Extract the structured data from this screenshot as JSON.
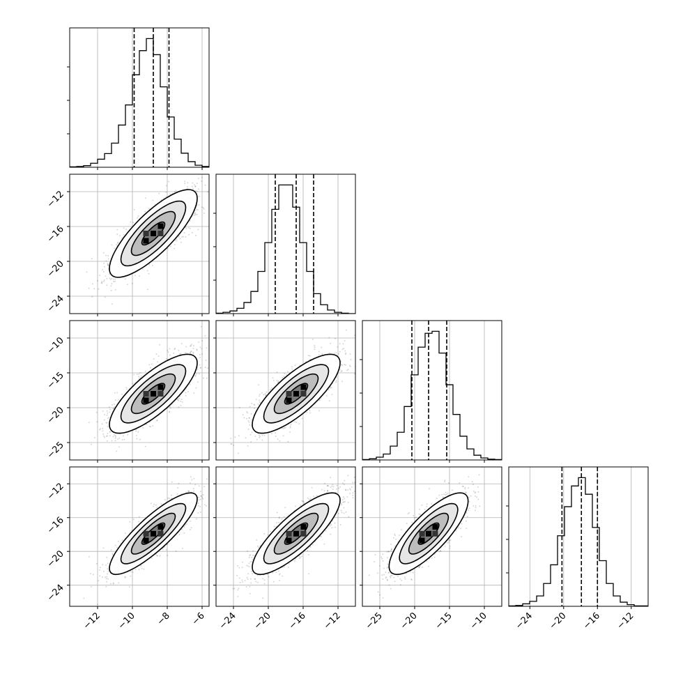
{
  "chart_data": {
    "type": "corner",
    "parameters": 4,
    "grid": true,
    "colors": {
      "ink": "#000000",
      "grid": "#b0b0b0",
      "scatter": "#000000"
    },
    "axes": [
      {
        "range": [
          -13.6,
          -5.6
        ],
        "ticks": [
          -12,
          -10,
          -8,
          -6
        ],
        "tick_labels": [
          "−12",
          "−10",
          "−8",
          "−6"
        ]
      },
      {
        "range": [
          -26,
          -10
        ],
        "ticks": [
          -24,
          -20,
          -16,
          -12
        ],
        "tick_labels": [
          "−24",
          "−20",
          "−16",
          "−12"
        ]
      },
      {
        "range": [
          -27.5,
          -7.5
        ],
        "ticks": [
          -25,
          -20,
          -15,
          -10
        ],
        "tick_labels": [
          "−25",
          "−20",
          "−15",
          "−10"
        ]
      },
      {
        "range": [
          -26.5,
          -10
        ],
        "ticks": [
          -24,
          -20,
          -16,
          -12
        ],
        "tick_labels": [
          "−24",
          "−20",
          "−16",
          "−12"
        ]
      }
    ],
    "marginals": [
      {
        "param": 0,
        "bin_start": -13.6,
        "bin_width": 0.4,
        "counts": [
          1,
          2,
          4,
          10,
          20,
          34,
          60,
          105,
          155,
          230,
          290,
          320,
          280,
          200,
          125,
          70,
          35,
          14,
          5,
          2
        ],
        "quantiles": [
          -9.9,
          -8.8,
          -7.9
        ]
      },
      {
        "param": 1,
        "bin_start": -26,
        "bin_width": 0.8,
        "counts": [
          1,
          3,
          6,
          12,
          25,
          50,
          95,
          160,
          235,
          290,
          290,
          240,
          160,
          95,
          45,
          20,
          8,
          3,
          1,
          0
        ],
        "quantiles": [
          -19.2,
          -16.8,
          -14.8
        ]
      },
      {
        "param": 2,
        "bin_start": -27.5,
        "bin_width": 1.0,
        "counts": [
          1,
          3,
          7,
          15,
          35,
          70,
          135,
          215,
          285,
          320,
          325,
          270,
          190,
          115,
          60,
          28,
          12,
          5,
          2,
          1
        ],
        "quantiles": [
          -20.4,
          -18.0,
          -15.4
        ]
      },
      {
        "param": 3,
        "bin_start": -26.5,
        "bin_width": 0.825,
        "counts": [
          1,
          2,
          6,
          12,
          25,
          55,
          100,
          170,
          240,
          290,
          310,
          270,
          190,
          110,
          55,
          25,
          10,
          4,
          1,
          1
        ],
        "quantiles": [
          -20.2,
          -17.9,
          -16.0
        ]
      }
    ],
    "joints": [
      {
        "x": 0,
        "y": 1,
        "means": [
          -8.8,
          -16.8
        ],
        "sds": [
          1.2,
          2.4
        ],
        "rho": 0.8
      },
      {
        "x": 0,
        "y": 2,
        "means": [
          -8.8,
          -18.0
        ],
        "sds": [
          1.2,
          2.7
        ],
        "rho": 0.78
      },
      {
        "x": 1,
        "y": 2,
        "means": [
          -16.8,
          -18.0
        ],
        "sds": [
          2.4,
          2.7
        ],
        "rho": 0.78
      },
      {
        "x": 0,
        "y": 3,
        "means": [
          -8.8,
          -17.9
        ],
        "sds": [
          1.2,
          2.3
        ],
        "rho": 0.85
      },
      {
        "x": 1,
        "y": 3,
        "means": [
          -16.8,
          -17.9
        ],
        "sds": [
          2.4,
          2.3
        ],
        "rho": 0.82
      },
      {
        "x": 2,
        "y": 3,
        "means": [
          -18.0,
          -17.9
        ],
        "sds": [
          2.7,
          2.3
        ],
        "rho": 0.8
      }
    ]
  }
}
